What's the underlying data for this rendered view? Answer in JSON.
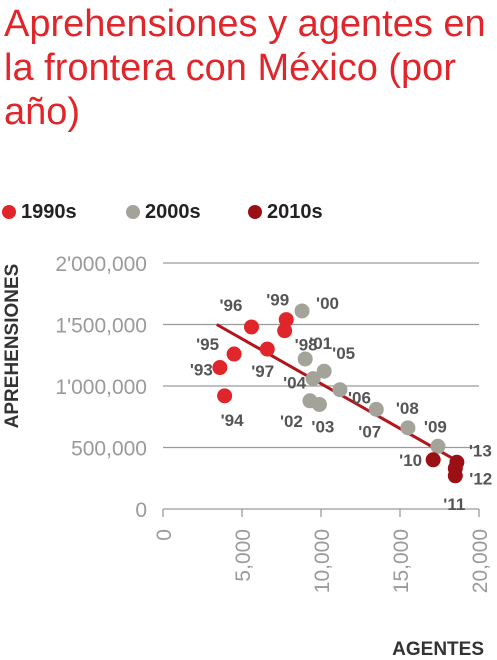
{
  "title": "Aprehensiones y agentes en la frontera con México (por año)",
  "legend": [
    {
      "label": "1990s",
      "color": "#e0262b"
    },
    {
      "label": "2000s",
      "color": "#a3a39a"
    },
    {
      "label": "2010s",
      "color": "#9b1015"
    }
  ],
  "colors": {
    "trend": "#b3151c",
    "grid": "#9a9a9a"
  },
  "chart_data": {
    "type": "scatter",
    "xlabel": "AGENTES",
    "ylabel": "APREHENSIONES",
    "xlim": [
      0,
      20000
    ],
    "ylim": [
      0,
      2000000
    ],
    "x_ticks": [
      {
        "value": 0,
        "label": "0"
      },
      {
        "value": 5000,
        "label": "5,000"
      },
      {
        "value": 10000,
        "label": "10,000"
      },
      {
        "value": 15000,
        "label": "15,000"
      },
      {
        "value": 20000,
        "label": "20,000"
      }
    ],
    "y_ticks": [
      {
        "value": 0,
        "label": "0"
      },
      {
        "value": 500000,
        "label": "500,000"
      },
      {
        "value": 1000000,
        "label": "1'000,000"
      },
      {
        "value": 1500000,
        "label": "1'500,000"
      },
      {
        "value": 2000000,
        "label": "2'000,000"
      }
    ],
    "grid": true,
    "legend_position": "top",
    "series": [
      {
        "name": "1990s",
        "color": "#e0262b",
        "points": [
          {
            "label": "'93",
            "x": 3600,
            "y": 1150000
          },
          {
            "label": "'94",
            "x": 3900,
            "y": 920000
          },
          {
            "label": "'95",
            "x": 4500,
            "y": 1260000
          },
          {
            "label": "'96",
            "x": 5600,
            "y": 1480000
          },
          {
            "label": "'97",
            "x": 6600,
            "y": 1300000
          },
          {
            "label": "'98",
            "x": 7700,
            "y": 1450000
          },
          {
            "label": "'99",
            "x": 7800,
            "y": 1540000
          }
        ]
      },
      {
        "name": "2000s",
        "color": "#a3a39a",
        "points": [
          {
            "label": "'00",
            "x": 8800,
            "y": 1610000
          },
          {
            "label": "'01",
            "x": 9000,
            "y": 1220000
          },
          {
            "label": "'02",
            "x": 9300,
            "y": 880000
          },
          {
            "label": "'03",
            "x": 9900,
            "y": 850000
          },
          {
            "label": "'04",
            "x": 9500,
            "y": 1060000
          },
          {
            "label": "'05",
            "x": 10200,
            "y": 1120000
          },
          {
            "label": "'06",
            "x": 11200,
            "y": 970000
          },
          {
            "label": "'07",
            "x": 13500,
            "y": 810000
          },
          {
            "label": "'08",
            "x": 15500,
            "y": 660000
          },
          {
            "label": "'09",
            "x": 17400,
            "y": 510000
          }
        ]
      },
      {
        "name": "2010s",
        "color": "#9b1015",
        "points": [
          {
            "label": "'10",
            "x": 17100,
            "y": 400000
          },
          {
            "label": "'11",
            "x": 18500,
            "y": 270000
          },
          {
            "label": "'12",
            "x": 18500,
            "y": 330000
          },
          {
            "label": "'13",
            "x": 18600,
            "y": 380000
          }
        ]
      }
    ],
    "trendline": {
      "x": [
        3400,
        18900
      ],
      "y": [
        1500000,
        370000
      ]
    }
  }
}
